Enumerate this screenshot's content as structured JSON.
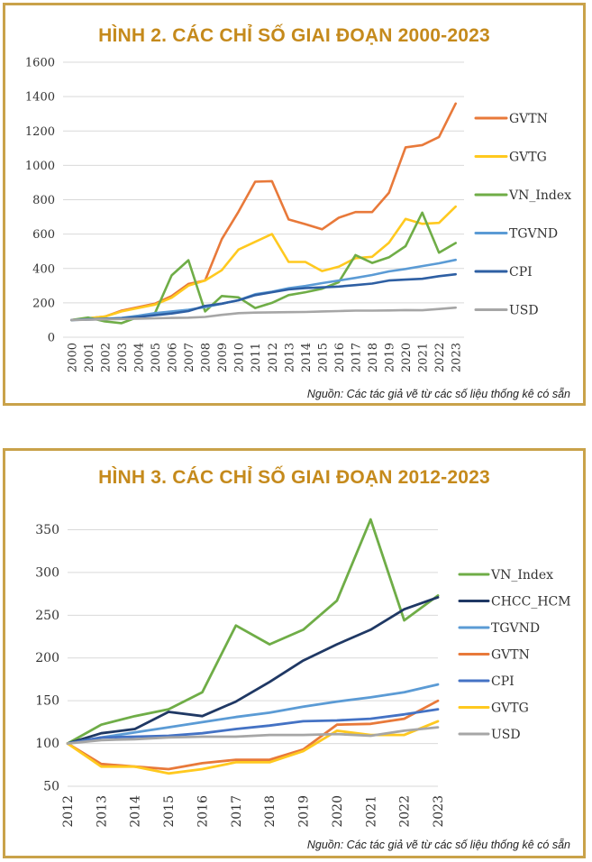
{
  "chart_data": [
    {
      "type": "line",
      "title": "HÌNH 2. CÁC CHỈ SỐ GIAI ĐOẠN 2000-2023",
      "source": "Nguồn: Các tác giả vẽ từ các số liệu thống kê có sẵn",
      "categories": [
        "2000",
        "2001",
        "2002",
        "2003",
        "2004",
        "2005",
        "2006",
        "2007",
        "2008",
        "2009",
        "2010",
        "2011",
        "2012",
        "2013",
        "2014",
        "2015",
        "2016",
        "2017",
        "2018",
        "2019",
        "2020",
        "2021",
        "2022",
        "2023"
      ],
      "yticks": [
        0,
        200,
        400,
        600,
        800,
        1000,
        1200,
        1400,
        1600
      ],
      "ylim": [
        0,
        1600
      ],
      "grid": true,
      "legend_position": "right",
      "series": [
        {
          "name": "GVTN",
          "color": "#e8793a",
          "values": [
            100,
            110,
            120,
            155,
            175,
            195,
            240,
            310,
            330,
            570,
            730,
            905,
            908,
            685,
            658,
            628,
            695,
            728,
            728,
            840,
            1105,
            1118,
            1165,
            1360
          ]
        },
        {
          "name": "GVTG",
          "color": "#ffc91f",
          "values": [
            100,
            110,
            120,
            150,
            170,
            190,
            230,
            300,
            330,
            390,
            510,
            555,
            600,
            438,
            438,
            385,
            410,
            460,
            468,
            550,
            688,
            660,
            665,
            760
          ]
        },
        {
          "name": "VN_Index",
          "color": "#6fad47",
          "values": [
            100,
            115,
            92,
            82,
            118,
            140,
            360,
            448,
            150,
            240,
            232,
            170,
            200,
            245,
            262,
            282,
            320,
            478,
            432,
            465,
            530,
            725,
            492,
            548
          ]
        },
        {
          "name": "TGVND",
          "color": "#5b9bd5",
          "values": [
            100,
            105,
            108,
            112,
            125,
            140,
            150,
            160,
            175,
            195,
            215,
            250,
            265,
            285,
            298,
            315,
            330,
            345,
            362,
            383,
            397,
            414,
            430,
            450
          ]
        },
        {
          "name": "CPI",
          "color": "#2e5fa3",
          "values": [
            100,
            103,
            106,
            110,
            118,
            128,
            138,
            152,
            182,
            195,
            215,
            245,
            262,
            278,
            286,
            290,
            295,
            303,
            312,
            330,
            335,
            340,
            355,
            366
          ]
        },
        {
          "name": "USD",
          "color": "#a6a6a6",
          "values": [
            100,
            102,
            104,
            106,
            108,
            110,
            112,
            114,
            118,
            130,
            140,
            143,
            145,
            146,
            147,
            150,
            152,
            155,
            155,
            156,
            158,
            157,
            164,
            172
          ]
        }
      ]
    },
    {
      "type": "line",
      "title": "HÌNH 3. CÁC CHỈ SỐ GIAI ĐOẠN 2012-2023",
      "source": "Nguồn: Các tác giả vẽ từ các số liệu thống kê có sẵn",
      "categories": [
        "2012",
        "2013",
        "2014",
        "2015",
        "2016",
        "2017",
        "2018",
        "2019",
        "2020",
        "2021",
        "2022",
        "2023"
      ],
      "yticks": [
        50,
        100,
        150,
        200,
        250,
        300,
        350
      ],
      "ylim": [
        50,
        360
      ],
      "grid": true,
      "legend_position": "right",
      "series": [
        {
          "name": "VN_Index",
          "color": "#6fad47",
          "values": [
            100,
            122,
            132,
            140,
            160,
            238,
            216,
            233,
            267,
            362,
            244,
            273
          ]
        },
        {
          "name": "CHCC_HCM",
          "color": "#1f3864",
          "values": [
            100,
            112,
            117,
            137,
            132,
            149,
            172,
            197,
            216,
            233,
            257,
            271
          ]
        },
        {
          "name": "TGVND",
          "color": "#5b9bd5",
          "values": [
            100,
            107,
            113,
            119,
            125,
            131,
            136,
            143,
            149,
            154,
            160,
            169
          ]
        },
        {
          "name": "GVTN",
          "color": "#e8793a",
          "values": [
            100,
            76,
            73,
            70,
            77,
            81,
            81,
            93,
            122,
            123,
            129,
            150
          ]
        },
        {
          "name": "CPI",
          "color": "#4472c4",
          "values": [
            100,
            107,
            108,
            109,
            112,
            117,
            121,
            126,
            127,
            129,
            134,
            140
          ]
        },
        {
          "name": "GVTG",
          "color": "#ffc91f",
          "values": [
            100,
            73,
            73,
            65,
            70,
            78,
            78,
            91,
            115,
            110,
            110,
            126
          ]
        },
        {
          "name": "USD",
          "color": "#a6a6a6",
          "values": [
            100,
            104,
            105,
            107,
            108,
            108,
            110,
            110,
            111,
            109,
            115,
            119
          ]
        }
      ]
    }
  ]
}
